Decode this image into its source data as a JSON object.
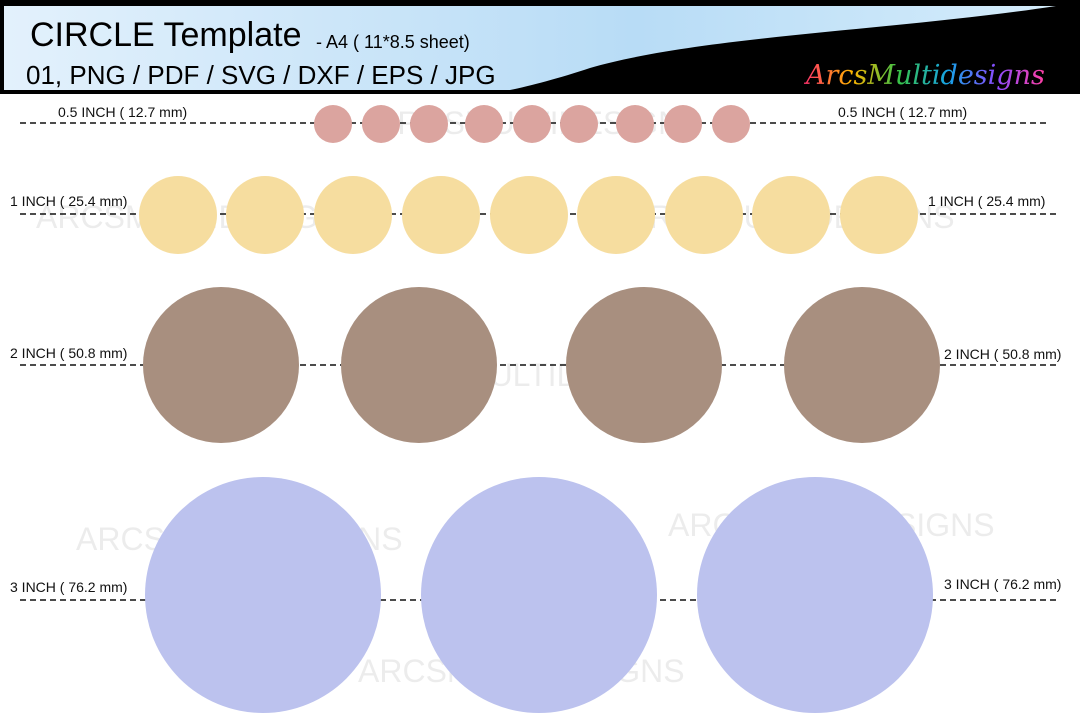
{
  "header": {
    "title": "CIRCLE Template",
    "subtitle": "- A4 ( 11*8.5 sheet)",
    "formats": "01, PNG / PDF / SVG / DXF / EPS / JPG",
    "brand": "ArcsMultidesigns",
    "colors": {
      "banner_light": "#d6ecfb",
      "banner_mid": "#a9d3f3",
      "frame": "#000000"
    }
  },
  "watermark": "ARCSMULTIDESIGNS",
  "rows": [
    {
      "label_left": "0.5 INCH ( 12.7 mm)",
      "label_right": "0.5 INCH ( 12.7 mm)",
      "count": 9,
      "color": "#dba49f"
    },
    {
      "label_left": "1 INCH ( 25.4 mm)",
      "label_right": "1 INCH ( 25.4 mm)",
      "count": 9,
      "color": "#f6dd9f"
    },
    {
      "label_left": "2 INCH ( 50.8 mm)",
      "label_right": "2 INCH ( 50.8 mm)",
      "count": 4,
      "color": "#a88f7f"
    },
    {
      "label_left": "3 INCH ( 76.2 mm)",
      "label_right": "3 INCH ( 76.2 mm)",
      "count": 3,
      "color": "#bcc2ee"
    }
  ]
}
